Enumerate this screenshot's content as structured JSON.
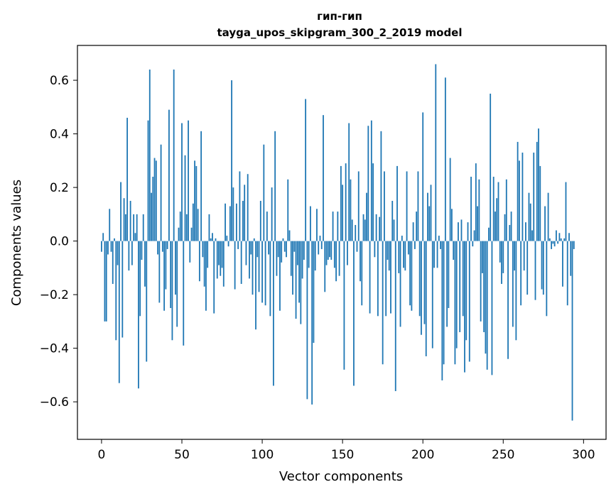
{
  "chart_data": {
    "type": "bar",
    "title": "гип-гип",
    "subtitle": "tayga_upos_skipgram_300_2_2019 model",
    "xlabel": "Vector components",
    "ylabel": "Components values",
    "xlim": [
      -15,
      314
    ],
    "ylim": [
      -0.74,
      0.73
    ],
    "xticks": [
      0,
      50,
      100,
      150,
      200,
      250,
      300
    ],
    "yticks": [
      -0.6,
      -0.4,
      -0.2,
      0.0,
      0.2,
      0.4,
      0.6
    ],
    "ytick_labels": [
      "−0.6",
      "−0.4",
      "−0.2",
      "0.0",
      "0.2",
      "0.4",
      "0.6"
    ],
    "grid": false,
    "bar_color": "#1f77b4",
    "values": [
      -0.04,
      0.03,
      -0.3,
      -0.3,
      -0.05,
      0.12,
      -0.04,
      -0.16,
      0.01,
      -0.37,
      -0.09,
      -0.53,
      0.22,
      -0.36,
      0.16,
      0.1,
      0.46,
      -0.11,
      0.15,
      -0.09,
      0.1,
      0.03,
      0.1,
      -0.55,
      -0.28,
      -0.07,
      0.1,
      -0.17,
      -0.45,
      0.45,
      0.64,
      0.18,
      0.24,
      0.31,
      0.3,
      -0.05,
      -0.23,
      0.36,
      -0.04,
      -0.26,
      -0.18,
      -0.03,
      0.49,
      -0.25,
      -0.37,
      0.64,
      -0.2,
      -0.32,
      0.05,
      0.11,
      0.44,
      -0.39,
      0.32,
      0.1,
      0.45,
      -0.08,
      0.05,
      0.14,
      0.3,
      0.28,
      0.12,
      -0.15,
      0.41,
      -0.06,
      -0.17,
      -0.26,
      -0.1,
      0.1,
      0.01,
      0.03,
      -0.27,
      0.01,
      -0.14,
      -0.09,
      -0.13,
      -0.1,
      -0.17,
      0.14,
      0.02,
      -0.02,
      0.13,
      0.6,
      0.2,
      -0.18,
      0.14,
      -0.03,
      0.26,
      -0.16,
      0.15,
      0.21,
      -0.09,
      0.25,
      -0.14,
      -0.05,
      -0.2,
      0.01,
      -0.33,
      -0.06,
      -0.19,
      0.15,
      -0.23,
      0.36,
      -0.24,
      0.11,
      -0.05,
      -0.28,
      0.2,
      -0.54,
      0.41,
      -0.13,
      -0.06,
      -0.26,
      -0.08,
      0.01,
      -0.04,
      -0.06,
      0.23,
      0.04,
      -0.13,
      -0.2,
      -0.04,
      -0.29,
      -0.09,
      -0.23,
      -0.31,
      -0.14,
      -0.07,
      0.53,
      -0.59,
      -0.1,
      0.13,
      -0.61,
      -0.38,
      -0.11,
      0.12,
      -0.05,
      0.02,
      -0.03,
      0.47,
      -0.19,
      -0.09,
      -0.07,
      -0.06,
      -0.07,
      0.11,
      -0.1,
      -0.15,
      0.11,
      -0.13,
      0.28,
      0.21,
      -0.48,
      0.29,
      -0.09,
      0.44,
      0.23,
      0.08,
      -0.54,
      0.06,
      -0.04,
      0.26,
      -0.15,
      -0.24,
      0.1,
      0.08,
      0.18,
      0.43,
      -0.27,
      0.45,
      0.29,
      -0.06,
      0.1,
      -0.28,
      0.09,
      0.41,
      -0.46,
      0.26,
      -0.28,
      -0.07,
      -0.11,
      -0.27,
      0.15,
      0.08,
      -0.56,
      0.28,
      -0.12,
      -0.32,
      0.02,
      -0.1,
      -0.11,
      0.26,
      -0.05,
      -0.24,
      -0.26,
      0.07,
      -0.03,
      0.11,
      0.26,
      -0.28,
      -0.35,
      0.48,
      -0.31,
      -0.43,
      0.18,
      0.13,
      0.21,
      -0.4,
      -0.1,
      0.66,
      -0.1,
      0.02,
      -0.03,
      -0.52,
      -0.46,
      0.61,
      -0.32,
      -0.25,
      0.31,
      0.12,
      -0.07,
      -0.46,
      -0.4,
      0.07,
      -0.34,
      0.08,
      -0.28,
      -0.49,
      -0.37,
      0.07,
      -0.45,
      0.24,
      -0.02,
      0.04,
      0.29,
      0.13,
      0.23,
      -0.3,
      -0.12,
      -0.34,
      -0.42,
      -0.48,
      0.05,
      0.55,
      -0.5,
      0.24,
      0.11,
      0.16,
      0.22,
      -0.08,
      -0.16,
      -0.12,
      0.1,
      0.23,
      -0.44,
      0.06,
      0.11,
      -0.32,
      -0.11,
      -0.37,
      0.37,
      0.3,
      -0.24,
      0.33,
      -0.11,
      0.07,
      -0.2,
      0.18,
      0.14,
      0.04,
      0.33,
      -0.22,
      0.37,
      0.42,
      0.28,
      -0.18,
      -0.2,
      0.13,
      -0.28,
      0.18,
      0.01,
      -0.03,
      -0.01,
      -0.02,
      0.04,
      -0.01,
      0.03,
      0.01,
      -0.17,
      0.01,
      0.22,
      -0.24,
      0.03,
      -0.13,
      -0.67,
      -0.03
    ]
  }
}
